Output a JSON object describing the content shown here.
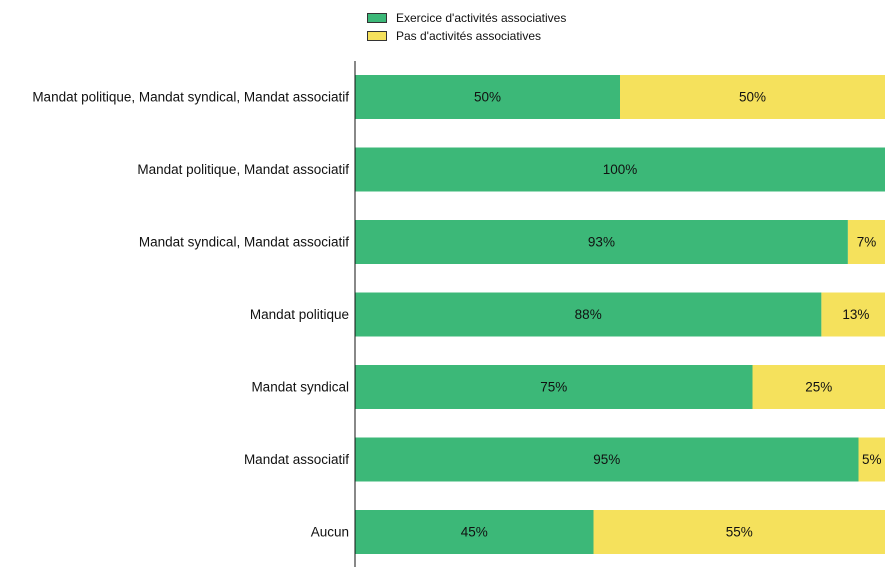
{
  "chart_data": {
    "type": "bar",
    "orientation": "horizontal",
    "stacked": true,
    "percent_scale": true,
    "title": "",
    "xlabel": "",
    "ylabel": "",
    "xlim": [
      0,
      100
    ],
    "grid": false,
    "legend_position": "top",
    "categories": [
      "Mandat politique, Mandat syndical, Mandat associatif",
      "Mandat politique, Mandat associatif",
      "Mandat syndical, Mandat associatif",
      "Mandat politique",
      "Mandat syndical",
      "Mandat associatif",
      "Aucun"
    ],
    "series": [
      {
        "name": "Exercice d'activités associatives",
        "color": "#3cb878",
        "values": [
          50,
          100,
          93,
          88,
          75,
          95,
          45
        ],
        "labels": [
          "50%",
          "100%",
          "93%",
          "88%",
          "75%",
          "95%",
          "45%"
        ]
      },
      {
        "name": "Pas d'activités associatives",
        "color": "#f5e15c",
        "values": [
          50,
          0,
          7,
          13,
          25,
          5,
          55
        ],
        "labels": [
          "50%",
          "",
          "7%",
          "13%",
          "25%",
          "5%",
          "55%"
        ]
      }
    ]
  }
}
